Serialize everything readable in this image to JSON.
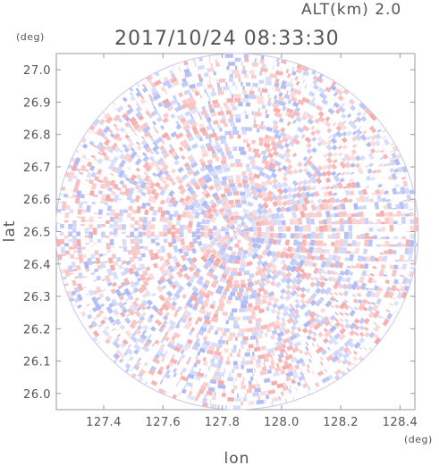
{
  "chart_data": {
    "type": "heatmap",
    "title": "2017/10/24 08:33:30",
    "altitude_label": "ALT(km) 2.0",
    "xlabel": "lon",
    "ylabel": "lat",
    "x_unit": "(deg)",
    "y_unit": "(deg)",
    "xlim": [
      127.24,
      128.45
    ],
    "ylim": [
      25.95,
      27.05
    ],
    "x_ticks": [
      "127.4",
      "127.6",
      "127.8",
      "128.0",
      "128.2",
      "128.4"
    ],
    "y_ticks": [
      "26.0",
      "26.1",
      "26.2",
      "26.3",
      "26.4",
      "26.5",
      "26.6",
      "26.7",
      "26.8",
      "26.9",
      "27.0"
    ],
    "radar_center": {
      "lon": 127.85,
      "lat": 26.5
    },
    "radar_radius_deg": {
      "lon": 0.612,
      "lat": 0.55
    },
    "colors": {
      "positive": "#f4a6a6",
      "negative": "#a9b4f4",
      "neutral": "#ffffff"
    },
    "grid": false
  }
}
